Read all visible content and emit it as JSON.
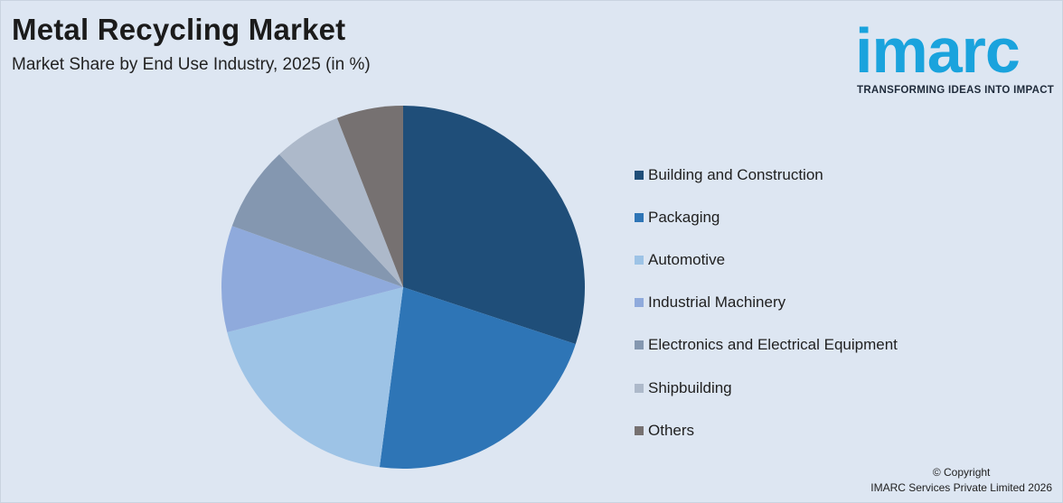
{
  "title": "Metal Recycling Market",
  "subtitle": "Market Share by End Use Industry, 2025 (in %)",
  "logo": {
    "word": "imarc",
    "tagline": "TRANSFORMING IDEAS INTO IMPACT",
    "color": "#1aa3dd"
  },
  "copyright": {
    "line1": "© Copyright",
    "line2": "IMARC Services Private Limited 2026"
  },
  "chart_data": {
    "type": "pie",
    "title": "Metal Recycling Market",
    "subtitle": "Market Share by End Use Industry, 2025 (in %)",
    "legend_position": "right",
    "categories": [
      "Building and Construction",
      "Packaging",
      "Automotive",
      "Industrial Machinery",
      "Electronics and Electrical Equipment",
      "Shipbuilding",
      "Others"
    ],
    "values": [
      30.5,
      22.3,
      19.2,
      9.6,
      7.7,
      6.1,
      6.0
    ],
    "colors": [
      "#1f4e79",
      "#2e75b6",
      "#9dc3e6",
      "#8faadc",
      "#8497b0",
      "#adb9ca",
      "#767171"
    ]
  }
}
